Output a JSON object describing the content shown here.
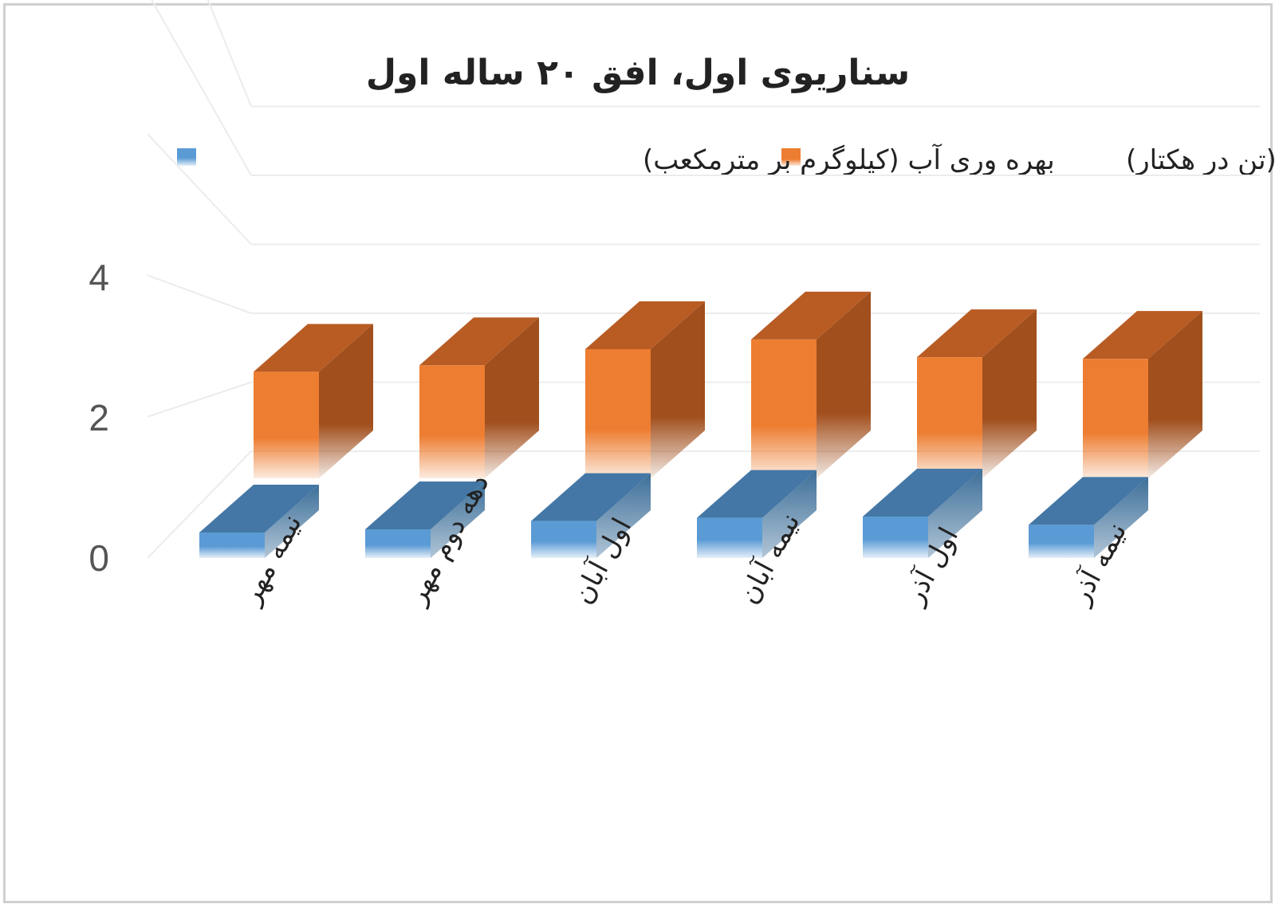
{
  "chart_data": {
    "type": "bar",
    "title": "سناریوی اول، افق ۲۰ ساله اول",
    "categories": [
      "نیمه مهر",
      "دهه دوم مهر",
      "اول آبان",
      "نیمه آبان",
      "اول آذر",
      "نیمه آذر"
    ],
    "series": [
      {
        "name": "عملکرد دانه (تن در هکتار)",
        "color": "#ED7D31",
        "values": [
          3.3,
          3.5,
          4.0,
          4.3,
          3.75,
          3.7
        ]
      },
      {
        "name": "بهره وری آب (کیلوگرم بر مترمکعب)",
        "color": "#5B9BD5",
        "values": [
          0.4,
          0.45,
          0.58,
          0.63,
          0.65,
          0.52
        ]
      }
    ],
    "yticks": [
      0,
      2,
      4
    ],
    "ylim": [
      0,
      5.5
    ],
    "legend_position": "top",
    "grid": true,
    "style": "3d-column"
  }
}
